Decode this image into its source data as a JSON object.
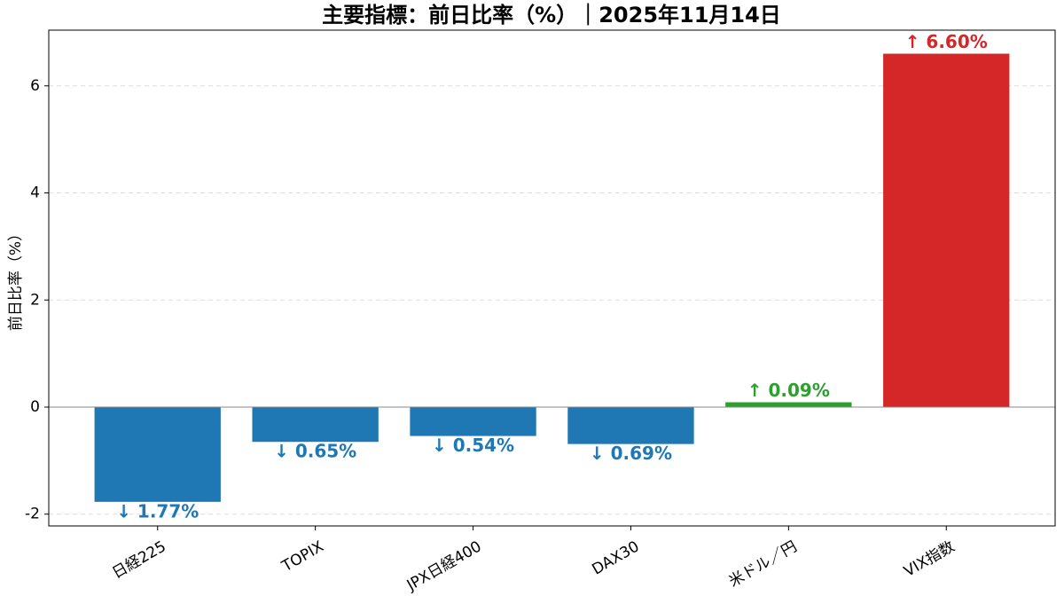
{
  "chart_data": {
    "type": "bar",
    "title": "主要指標：前日比率（%）｜2025年11月14日",
    "y_label": "前日比率（%）",
    "categories": [
      "日経225",
      "TOPIX",
      "JPX日経400",
      "DAX30",
      "米ドル／円",
      "VIX指数"
    ],
    "values": [
      -1.77,
      -0.65,
      -0.54,
      -0.69,
      0.09,
      6.6
    ],
    "value_labels": [
      "↓ 1.77%",
      "↓ 0.65%",
      "↓ 0.54%",
      "↓ 0.69%",
      "↑ 0.09%",
      "↑ 6.60%"
    ],
    "colors": [
      "#1f77b4",
      "#1f77b4",
      "#1f77b4",
      "#1f77b4",
      "#2ca02c",
      "#d62728"
    ],
    "ylim": [
      -2.22,
      7.04
    ],
    "yticks": [
      -2,
      0,
      2,
      4,
      6
    ],
    "grid": true
  }
}
